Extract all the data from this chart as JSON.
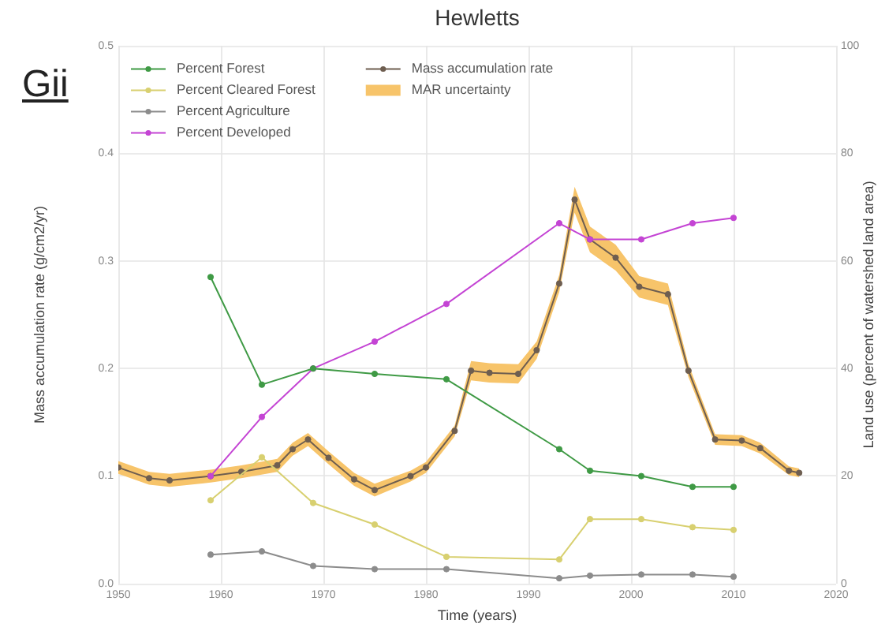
{
  "chart_data": {
    "type": "line",
    "title": "Hewletts",
    "xlabel": "Time (years)",
    "ylabel": "Mass accumulation rate (g/cm2/yr)",
    "y2label": "Land use (percent of watershed land area)",
    "annotations": [
      "Gii"
    ],
    "xlim": [
      1950,
      2020
    ],
    "xticks": [
      1950,
      1960,
      1970,
      1980,
      1990,
      2000,
      2010,
      2020
    ],
    "ylim": [
      0,
      0.5
    ],
    "yticks": [
      {
        "value": 0,
        "label": "0.0"
      },
      0.1,
      0.2,
      0.3,
      0.4,
      0.5
    ],
    "y2lim": [
      0,
      100
    ],
    "y2ticks": [
      0,
      20,
      40,
      60,
      80,
      100
    ],
    "grid": true,
    "legend": "top left",
    "marker": "circle",
    "series": [
      {
        "name": "Percent Forest",
        "color": "#3f9a45",
        "axis": "y2",
        "x": [
          1959,
          1964,
          1969,
          1975,
          1982,
          1993,
          1996,
          2001,
          2006,
          2010
        ],
        "values": [
          57,
          37,
          40,
          39,
          38,
          25,
          21,
          20,
          18,
          18
        ]
      },
      {
        "name": "Percent Cleared Forest",
        "color": "#d8d070",
        "axis": "y2",
        "x": [
          1959,
          1964,
          1969,
          1975,
          1982,
          1993,
          1996,
          2001,
          2006,
          2010
        ],
        "values": [
          15.5,
          23.5,
          15,
          11,
          5,
          4.5,
          12,
          12,
          10.5,
          10
        ]
      },
      {
        "name": "Percent Agriculture",
        "color": "#8c8c8c",
        "axis": "y2",
        "x": [
          1959,
          1964,
          1969,
          1975,
          1982,
          1993,
          1996,
          2001,
          2006,
          2010
        ],
        "values": [
          5.4,
          6,
          3.3,
          2.7,
          2.7,
          1,
          1.5,
          1.7,
          1.7,
          1.3
        ]
      },
      {
        "name": "Percent Developed",
        "color": "#c444d4",
        "axis": "y2",
        "x": [
          1959,
          1964,
          1969,
          1975,
          1982,
          1993,
          1996,
          2001,
          2006,
          2010
        ],
        "values": [
          20,
          31,
          40,
          45,
          52,
          67,
          64,
          64,
          67,
          68
        ]
      },
      {
        "name": "Mass accumulation rate",
        "color": "#6e5e50",
        "x": [
          1950,
          1953,
          1955,
          1959,
          1962,
          1965.5,
          1967,
          1968.5,
          1970.5,
          1973,
          1975,
          1978.5,
          1980,
          1982.8,
          1984.4,
          1986.2,
          1989,
          1990.8,
          1993,
          1994.5,
          1996,
          1998.5,
          2000.8,
          2003.6,
          2005.6,
          2008.2,
          2010.8,
          2012.6,
          2015.4,
          2016.4
        ],
        "values": [
          0.108,
          0.098,
          0.096,
          0.1,
          0.104,
          0.11,
          0.125,
          0.134,
          0.117,
          0.097,
          0.087,
          0.1,
          0.108,
          0.142,
          0.198,
          0.196,
          0.195,
          0.217,
          0.279,
          0.357,
          0.32,
          0.303,
          0.276,
          0.269,
          0.198,
          0.134,
          0.133,
          0.126,
          0.105,
          0.103
        ]
      },
      {
        "name": "MAR uncertainty",
        "type": "area",
        "color": "#f7c46a",
        "x": [
          1950,
          1953,
          1955,
          1959,
          1962,
          1965.5,
          1967,
          1968.5,
          1970.5,
          1973,
          1975,
          1978.5,
          1980,
          1982.8,
          1984.4,
          1986.2,
          1989,
          1990.8,
          1993,
          1994.5,
          1996,
          1998.5,
          2000.8,
          2003.6,
          2005.6,
          2008.2,
          2010.8,
          2012.6,
          2015.4,
          2016.4
        ],
        "values": [
          null,
          null,
          null,
          null,
          null,
          null,
          null,
          null,
          null,
          null,
          null,
          null,
          null,
          null,
          null,
          null,
          null,
          null,
          null,
          null,
          null,
          null,
          null,
          null,
          null,
          null,
          null,
          null,
          null,
          null
        ],
        "lower": [
          0.102,
          0.092,
          0.09,
          0.094,
          0.098,
          0.104,
          0.119,
          0.128,
          0.111,
          0.091,
          0.081,
          0.095,
          0.103,
          0.137,
          0.189,
          0.187,
          0.186,
          0.209,
          0.271,
          0.345,
          0.308,
          0.291,
          0.266,
          0.259,
          0.192,
          0.129,
          0.128,
          0.121,
          0.101,
          0.099
        ],
        "upper": [
          0.114,
          0.104,
          0.102,
          0.106,
          0.11,
          0.116,
          0.131,
          0.14,
          0.123,
          0.103,
          0.093,
          0.105,
          0.113,
          0.147,
          0.207,
          0.205,
          0.204,
          0.225,
          0.287,
          0.369,
          0.332,
          0.315,
          0.286,
          0.279,
          0.204,
          0.139,
          0.138,
          0.131,
          0.109,
          0.107
        ]
      }
    ]
  }
}
